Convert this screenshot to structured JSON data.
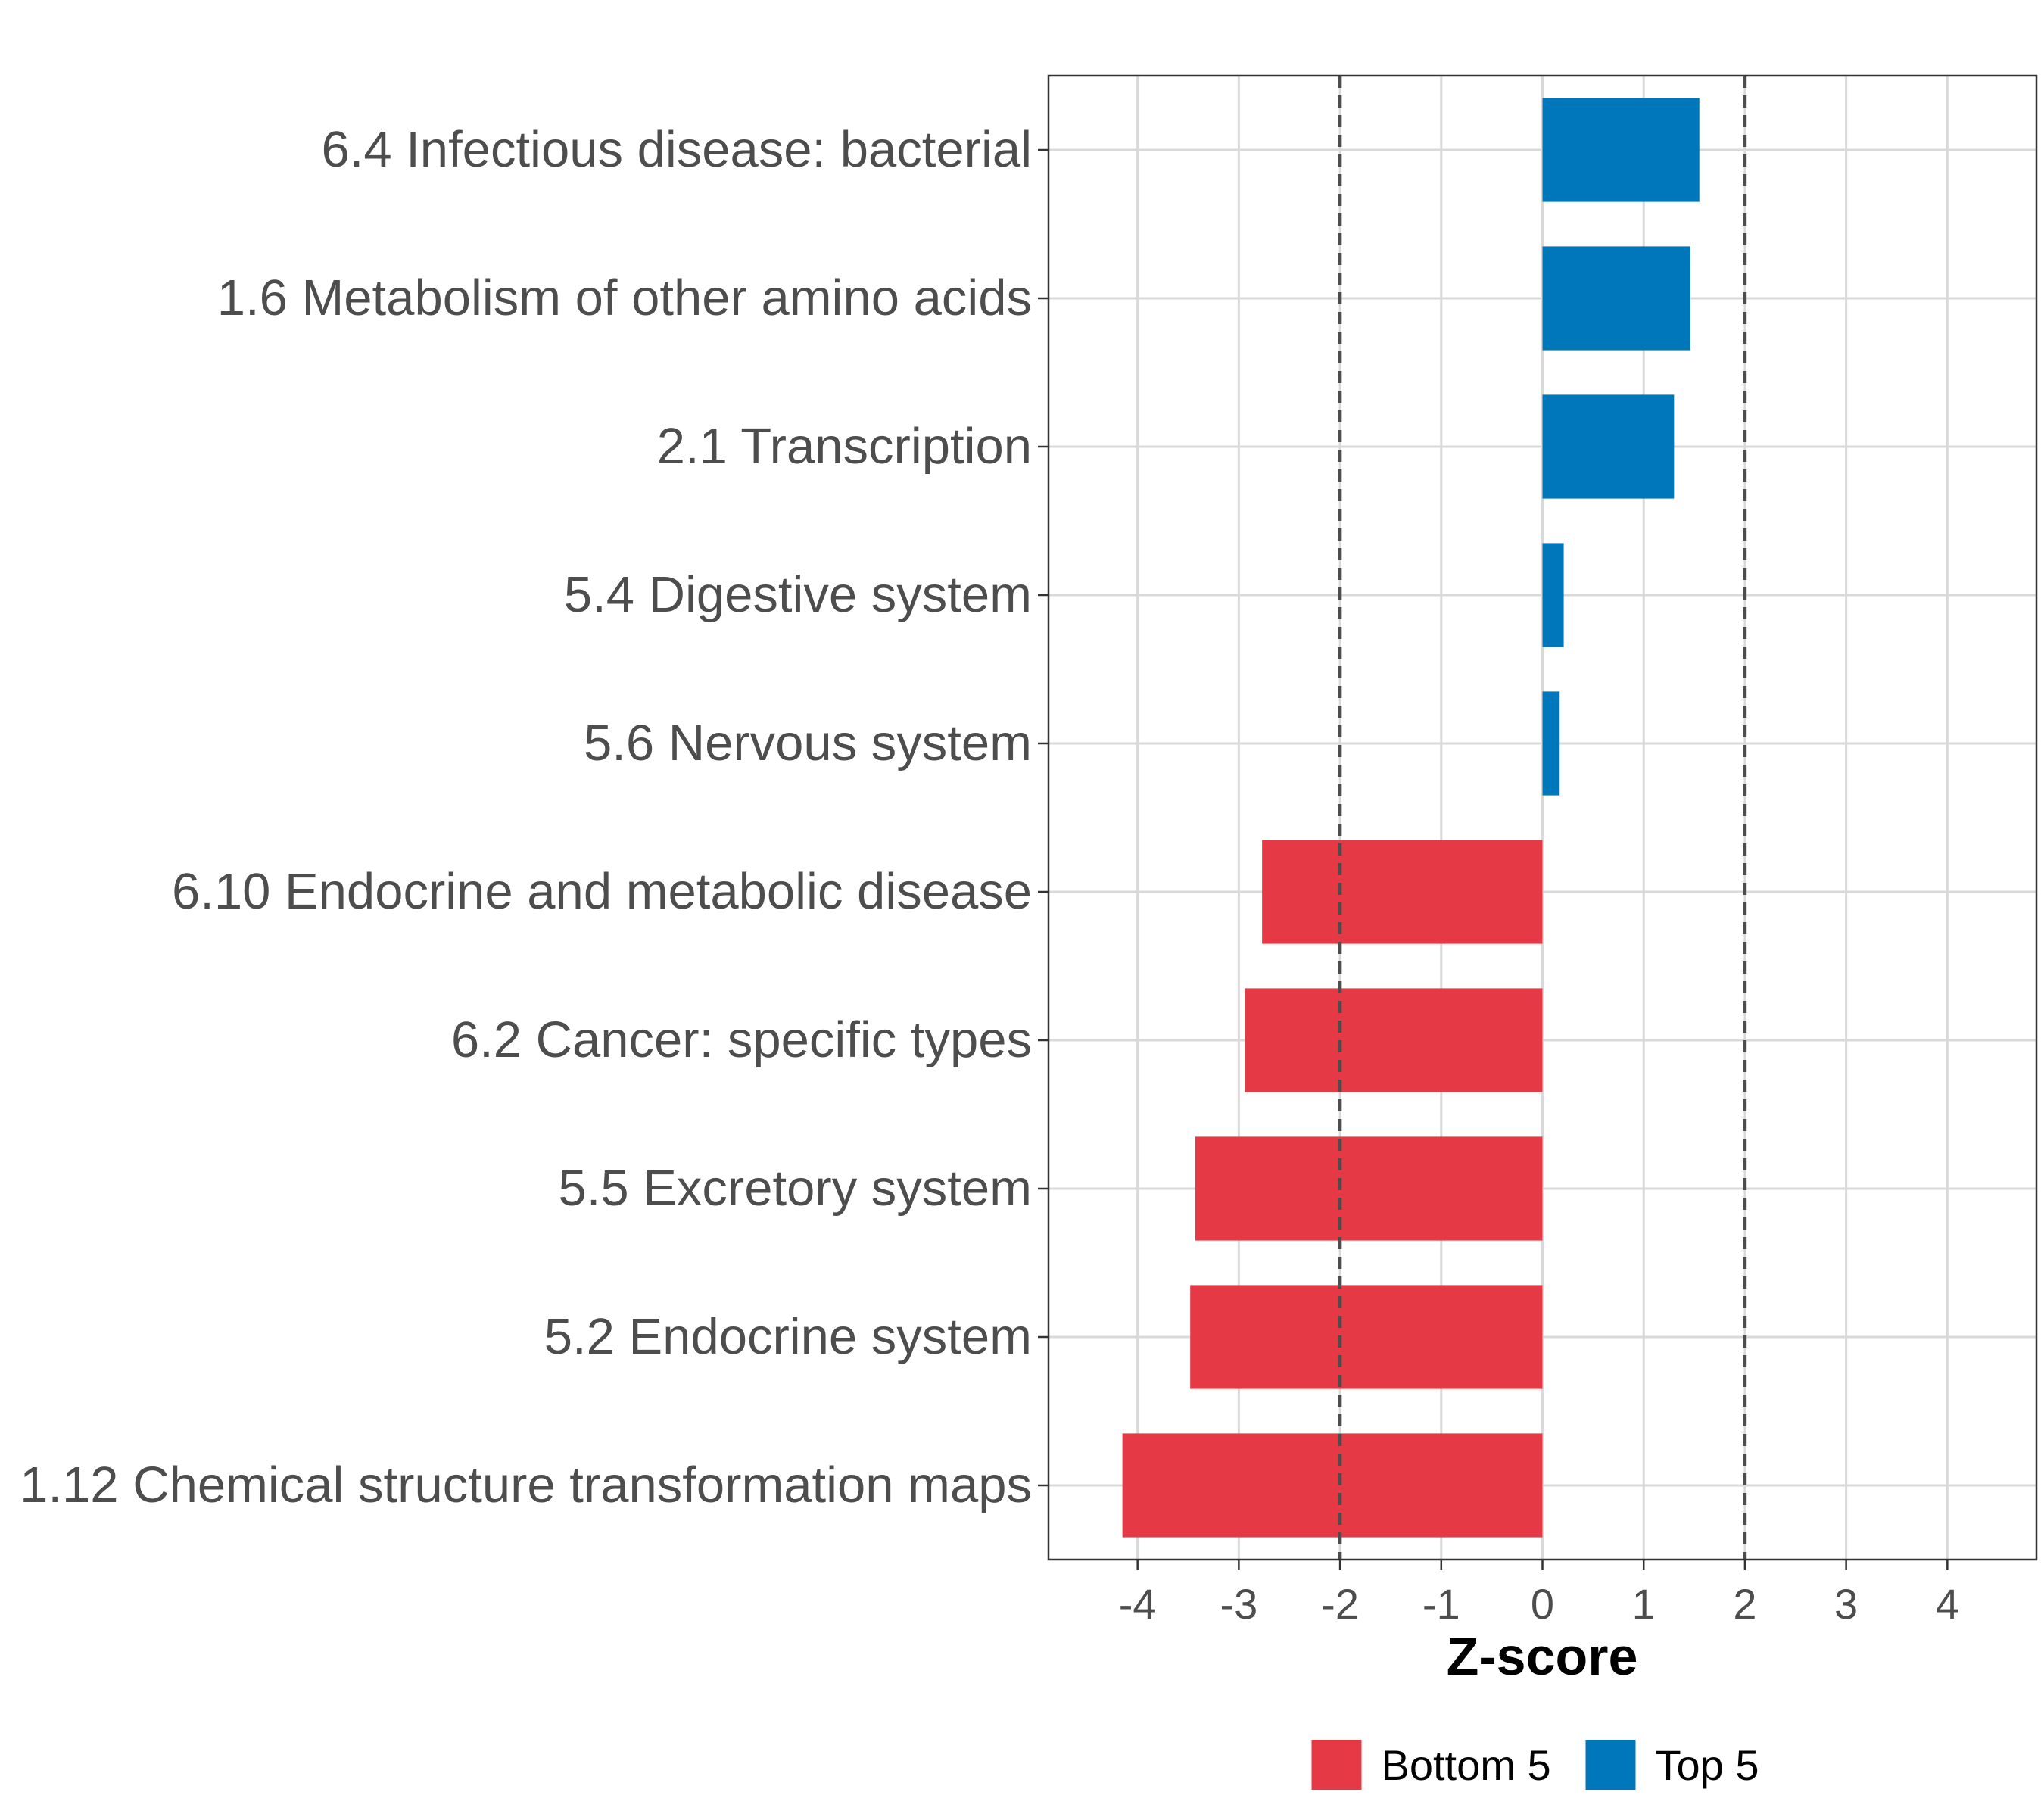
{
  "chart_data": {
    "type": "bar",
    "orientation": "horizontal",
    "categories": [
      "6.4 Infectious disease: bacterial",
      "1.6 Metabolism of other amino acids",
      "2.1 Transcription",
      "5.4 Digestive system",
      "5.6 Nervous system",
      "6.10 Endocrine and metabolic disease",
      "6.2 Cancer: specific types",
      "5.5 Excretory system",
      "5.2 Endocrine system",
      "1.12 Chemical structure transformation maps"
    ],
    "values": [
      1.55,
      1.46,
      1.3,
      0.21,
      0.17,
      -2.77,
      -2.94,
      -3.43,
      -3.48,
      -4.15
    ],
    "groups": [
      "Top 5",
      "Top 5",
      "Top 5",
      "Top 5",
      "Top 5",
      "Bottom 5",
      "Bottom 5",
      "Bottom 5",
      "Bottom 5",
      "Bottom 5"
    ],
    "xlabel": "Z-score",
    "ylabel": "",
    "xlim": [
      -4.88,
      4.88
    ],
    "xticks": [
      -4,
      -3,
      -2,
      -1,
      0,
      1,
      2,
      3,
      4
    ],
    "xtick_labels": [
      "-4",
      "-3",
      "-2",
      "-1",
      "0",
      "1",
      "2",
      "3",
      "4"
    ],
    "reference_lines": [
      -2,
      2
    ],
    "grid": true,
    "legend": {
      "position": "bottom",
      "items": [
        {
          "label": "Bottom 5",
          "color": "#e63946"
        },
        {
          "label": "Top 5",
          "color": "#0077bb"
        }
      ]
    },
    "colors": {
      "Bottom 5": "#e63946",
      "Top 5": "#0077bb"
    }
  }
}
